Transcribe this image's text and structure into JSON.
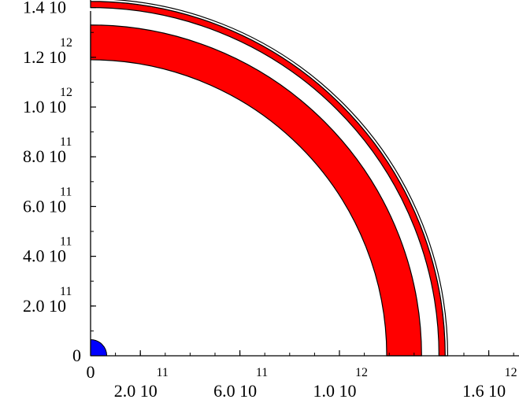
{
  "chart_data": {
    "type": "area",
    "title": "",
    "xlabel": "",
    "ylabel": "",
    "xlim": [
      0,
      1700000000000.0
    ],
    "ylim": [
      0,
      1450000000000.0
    ],
    "grid": false,
    "legend": "none",
    "x_ticks": [
      {
        "value": 0,
        "mantissa": "0",
        "exponent": ""
      },
      {
        "value": 200000000000.0,
        "mantissa": "2.0 10",
        "exponent": "11"
      },
      {
        "value": 600000000000.0,
        "mantissa": "6.0 10",
        "exponent": "11"
      },
      {
        "value": 1000000000000.0,
        "mantissa": "1.0 10",
        "exponent": "12"
      },
      {
        "value": 1600000000000.0,
        "mantissa": "1.6 10",
        "exponent": "12"
      }
    ],
    "y_ticks": [
      {
        "value": 0,
        "mantissa": "0",
        "exponent": ""
      },
      {
        "value": 200000000000.0,
        "mantissa": "2.0 10",
        "exponent": "11"
      },
      {
        "value": 400000000000.0,
        "mantissa": "4.0 10",
        "exponent": "11"
      },
      {
        "value": 600000000000.0,
        "mantissa": "6.0 10",
        "exponent": "11"
      },
      {
        "value": 800000000000.0,
        "mantissa": "8.0 10",
        "exponent": "11"
      },
      {
        "value": 1000000000000.0,
        "mantissa": "1.0 10",
        "exponent": "12"
      },
      {
        "value": 1200000000000.0,
        "mantissa": "1.2 10",
        "exponent": "12"
      },
      {
        "value": 1400000000000.0,
        "mantissa": "1.4 10",
        "exponent": "12"
      }
    ],
    "regions": [
      {
        "kind": "quarter-disk",
        "r_outer": 65000000000.0,
        "color": "#0000ff"
      },
      {
        "kind": "quarter-ring",
        "r_inner": 1190000000000.0,
        "r_outer": 1330000000000.0,
        "color": "#ff0000"
      },
      {
        "kind": "quarter-ring",
        "r_inner": 1400000000000.0,
        "r_outer": 1425000000000.0,
        "color": "#ff0000"
      },
      {
        "kind": "quarter-ring-outline",
        "r_inner": 1425000000000.0,
        "r_outer": 1435000000000.0,
        "color": "#ffffff"
      }
    ]
  }
}
